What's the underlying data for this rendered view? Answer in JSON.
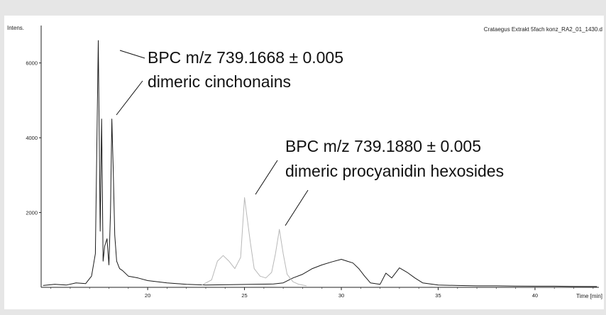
{
  "chart_data": {
    "type": "line",
    "ylabel": "Intens.",
    "xlabel": "Time [min]",
    "file_label": "Crataegus Extrakt 5fach konz_RA2_01_1430.d",
    "xlim": [
      14.5,
      43.3
    ],
    "ylim": [
      0,
      7000
    ],
    "x_ticks": [
      20,
      25,
      30,
      35,
      40
    ],
    "y_ticks": [
      2000,
      4000,
      6000
    ],
    "series": [
      {
        "color": "#1a1a1a",
        "x": [
          14.6,
          15.2,
          15.8,
          16.3,
          16.8,
          17.1,
          17.3,
          17.45,
          17.55,
          17.62,
          17.7,
          17.78,
          17.9,
          18.0,
          18.08,
          18.15,
          18.22,
          18.3,
          18.4,
          18.55,
          18.7,
          19.0,
          19.5,
          20.0,
          20.5,
          21.0,
          21.5,
          22.0,
          22.5,
          23.0,
          26.5,
          27.0,
          27.5,
          28.0,
          28.5,
          29.0,
          29.5,
          30.0,
          30.3,
          30.6,
          30.9,
          31.2,
          31.5,
          32.0,
          32.3,
          32.6,
          33.0,
          33.4,
          33.8,
          34.2,
          35.0,
          36.0,
          37.0,
          38.0,
          39.0,
          40.0,
          41.0,
          42.0,
          43.2
        ],
        "y": [
          50,
          80,
          60,
          120,
          100,
          300,
          900,
          6600,
          1500,
          4500,
          700,
          1100,
          1300,
          600,
          2000,
          4500,
          3200,
          1400,
          700,
          500,
          450,
          300,
          250,
          180,
          150,
          120,
          100,
          80,
          70,
          60,
          90,
          120,
          250,
          350,
          500,
          600,
          680,
          750,
          700,
          650,
          500,
          300,
          120,
          80,
          380,
          250,
          520,
          400,
          250,
          120,
          60,
          50,
          40,
          40,
          35,
          30,
          30,
          25,
          20
        ]
      },
      {
        "color": "#b8b8b8",
        "x": [
          22.8,
          23.3,
          23.6,
          23.9,
          24.2,
          24.5,
          24.8,
          25.0,
          25.1,
          25.3,
          25.5,
          25.8,
          26.1,
          26.4,
          26.6,
          26.8,
          27.0,
          27.2,
          27.5,
          27.8,
          28.2
        ],
        "y": [
          60,
          200,
          700,
          850,
          700,
          500,
          800,
          2400,
          2000,
          1200,
          500,
          300,
          250,
          400,
          900,
          1550,
          900,
          350,
          150,
          80,
          40
        ]
      }
    ],
    "annotations": [
      {
        "lines": [
          "BPC m/z 739.1668 ± 0.005",
          "dimeric cinchonains"
        ]
      },
      {
        "lines": [
          "BPC m/z 739.1880 ± 0.005",
          "dimeric procyanidin hexosides"
        ]
      }
    ]
  }
}
